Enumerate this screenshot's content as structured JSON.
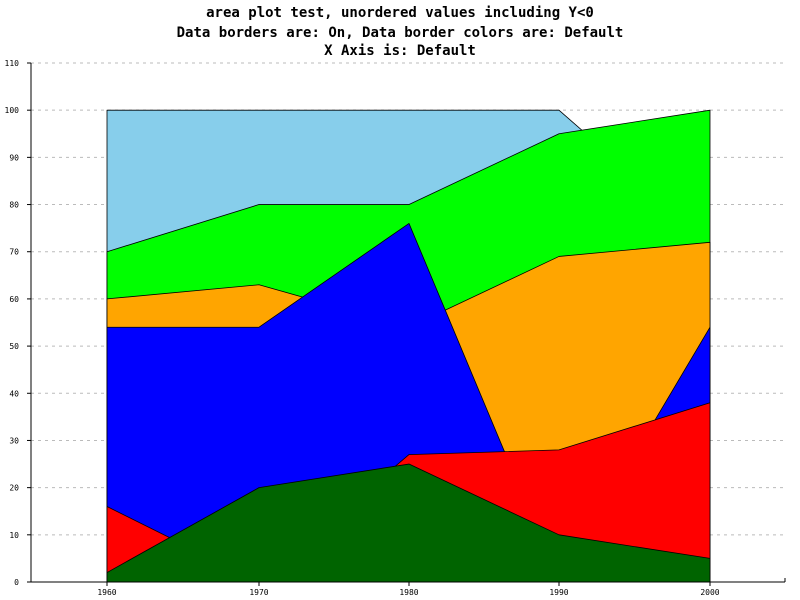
{
  "chart_data": {
    "type": "area",
    "title_lines": [
      "area plot test, unordered values including Y<0",
      "Data borders are: On, Data border colors are: Default",
      "X Axis is: Default"
    ],
    "xlabel": "",
    "ylabel": "",
    "categories": [
      "1960",
      "1970",
      "1980",
      "1990",
      "2000"
    ],
    "ylim": [
      0,
      110
    ],
    "yticks": [
      0,
      10,
      20,
      30,
      40,
      50,
      60,
      70,
      80,
      90,
      100,
      110
    ],
    "grid": "horizontal dashed",
    "legend": "none",
    "series": [
      {
        "color": "#87ceeb",
        "values": [
          100,
          100,
          100,
          100,
          72
        ]
      },
      {
        "color": "#00ff00",
        "values": [
          70,
          80,
          80,
          95,
          100
        ]
      },
      {
        "color": "#ffa500",
        "values": [
          60,
          63,
          54,
          69,
          72
        ]
      },
      {
        "color": "#0000ff",
        "values": [
          54,
          54,
          76,
          0,
          54
        ]
      },
      {
        "color": "#ff0000",
        "values": [
          16,
          0,
          27,
          28,
          38
        ]
      },
      {
        "color": "#006400",
        "values": [
          2,
          20,
          25,
          10,
          5
        ]
      }
    ]
  }
}
